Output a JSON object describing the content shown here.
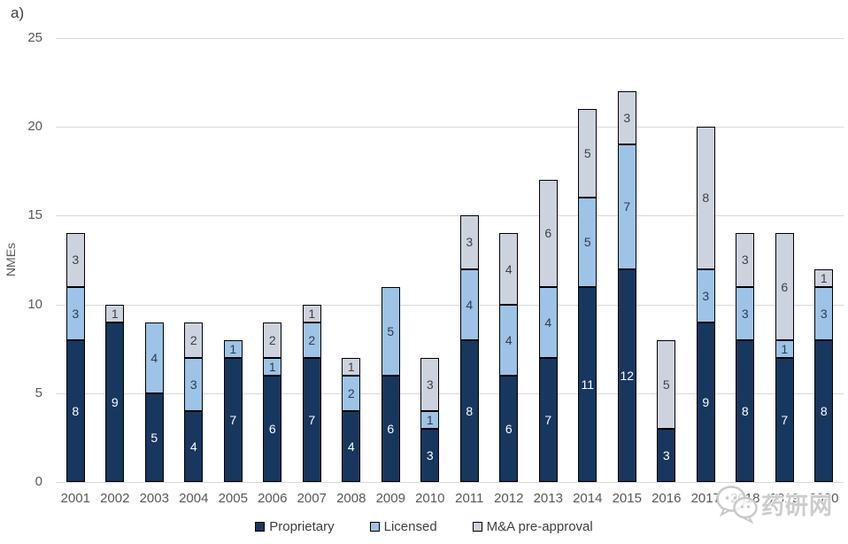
{
  "panel_label": "a)",
  "watermark": {
    "text": "药研网",
    "logo": "chat-bubbles-logo"
  },
  "colors": {
    "proprietary": "#17375E",
    "licensed": "#9DC3E6",
    "ma_pre_approval": "#CDD3DE",
    "bar_border": "#000000",
    "gridline": "#D9D9D9",
    "axis_text": "#595959"
  },
  "chart_data": {
    "type": "bar",
    "stacked": true,
    "title": "",
    "xlabel": "",
    "ylabel": "NMEs",
    "ylim": [
      0,
      25
    ],
    "yticks": [
      0,
      5,
      10,
      15,
      20,
      25
    ],
    "grid": true,
    "legend_position": "bottom",
    "categories": [
      "2001",
      "2002",
      "2003",
      "2004",
      "2005",
      "2006",
      "2007",
      "2008",
      "2009",
      "2010",
      "2011",
      "2012",
      "2013",
      "2014",
      "2015",
      "2016",
      "2017",
      "2018",
      "2019",
      "2020"
    ],
    "series": [
      {
        "name": "Proprietary",
        "color": "#17375E",
        "label_color": "#FFFFFF",
        "values": [
          8,
          9,
          5,
          4,
          7,
          6,
          7,
          4,
          6,
          3,
          8,
          6,
          7,
          11,
          12,
          3,
          9,
          8,
          7,
          8
        ]
      },
      {
        "name": "Licensed",
        "color": "#9DC3E6",
        "label_color": "#2F3B4C",
        "values": [
          3,
          0,
          4,
          3,
          1,
          1,
          2,
          2,
          5,
          1,
          4,
          4,
          4,
          5,
          7,
          0,
          3,
          3,
          1,
          3
        ]
      },
      {
        "name": "M&A pre-approval",
        "color": "#CDD3DE",
        "label_color": "#404040",
        "values": [
          3,
          1,
          0,
          2,
          0,
          2,
          1,
          1,
          0,
          3,
          3,
          4,
          6,
          5,
          3,
          5,
          8,
          3,
          6,
          1
        ]
      }
    ],
    "totals": [
      14,
      10,
      9,
      9,
      8,
      9,
      10,
      7,
      11,
      7,
      15,
      14,
      17,
      21,
      22,
      8,
      20,
      14,
      14,
      12
    ]
  }
}
